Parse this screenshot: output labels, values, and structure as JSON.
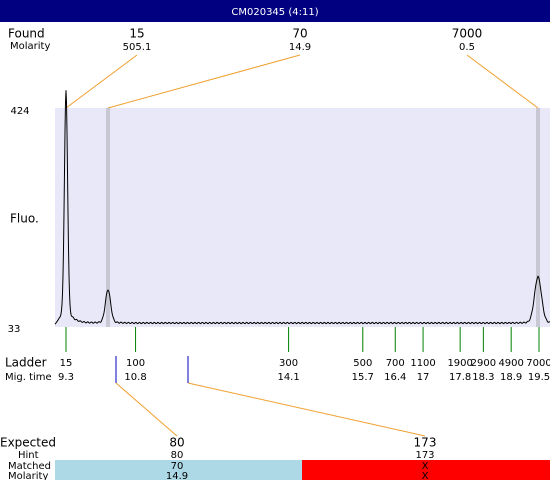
{
  "title": "CM020345 (4:11)",
  "found": {
    "label": "Found",
    "molarity_label": "Molarity",
    "peaks": [
      {
        "size": 15,
        "molarity": 505.1
      },
      {
        "size": 70,
        "molarity": 14.9
      },
      {
        "size": 7000,
        "molarity": 0.5
      }
    ]
  },
  "fluo": {
    "label": "Fluo.",
    "max": 424,
    "min": 33
  },
  "ladder": {
    "label": "Ladder",
    "time_label": "Mig. time",
    "bands": [
      {
        "size": 15,
        "time": 9.3
      },
      {
        "size": 100,
        "time": 10.8
      },
      {
        "size": 300,
        "time": 14.1
      },
      {
        "size": 500,
        "time": 15.7
      },
      {
        "size": 700,
        "time": 16.4
      },
      {
        "size": 1100,
        "time": 17
      },
      {
        "size": 1900,
        "time": 17.8
      },
      {
        "size": 2900,
        "time": 18.3
      },
      {
        "size": 4900,
        "time": 18.9
      },
      {
        "size": 7000,
        "time": 19.5
      }
    ]
  },
  "expected": {
    "label": "Expected",
    "hint_label": "Hint",
    "matched_label": "Matched",
    "molarity_label": "Molarity",
    "items": [
      {
        "expected": 80,
        "hint": 80,
        "matched": 70,
        "molarity": 14.9
      },
      {
        "expected": 173,
        "hint": 173,
        "matched": "X",
        "molarity": "X"
      }
    ]
  }
}
